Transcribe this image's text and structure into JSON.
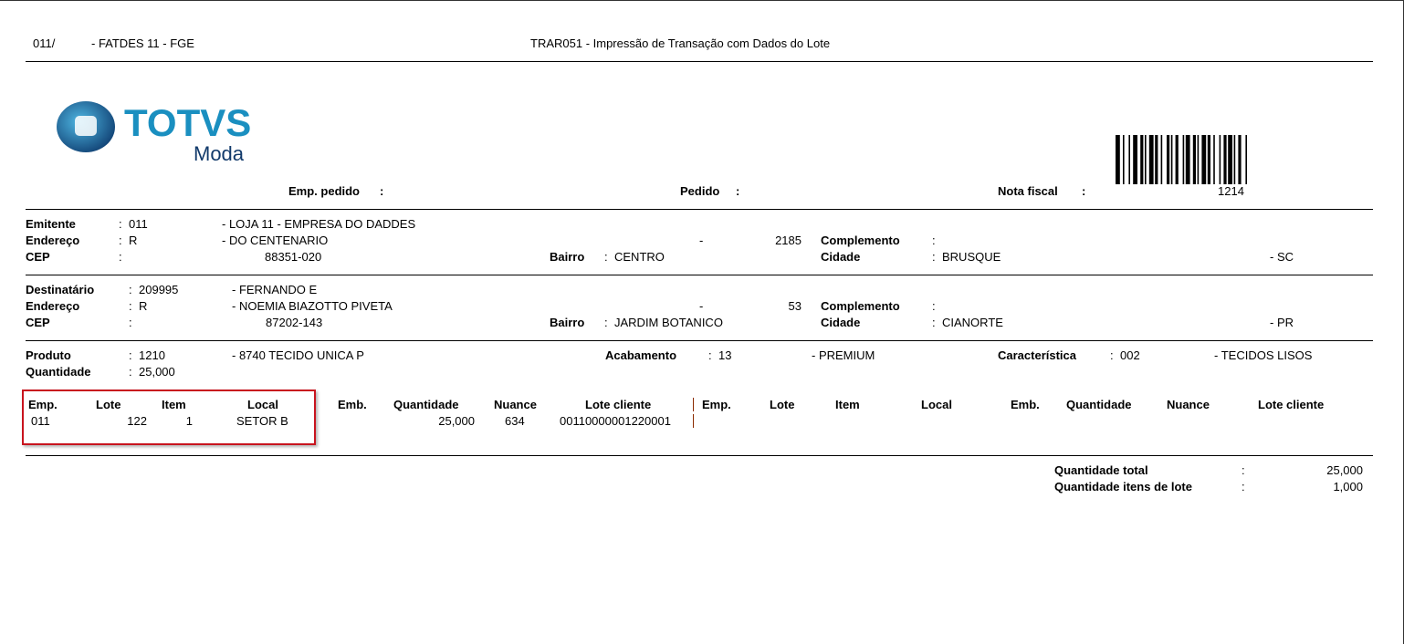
{
  "header": {
    "company_code": "011/",
    "report_unit": "- FATDES 11 - FGE",
    "title": "TRAR051 - Impressão de Transação com Dados do Lote"
  },
  "logo": {
    "brand": "TOTVS",
    "sub": "Moda",
    "color": "#1a8fc0"
  },
  "order": {
    "emp_pedido_label": "Emp. pedido",
    "emp_pedido_value": "",
    "pedido_label": "Pedido",
    "pedido_value": "",
    "nota_fiscal_label": "Nota fiscal",
    "nota_fiscal_value": "1214",
    "colon": ":"
  },
  "emitente": {
    "label": "Emitente",
    "code": "011",
    "name": "- LOJA 11 - EMPRESA DO DADDES",
    "endereco_label": "Endereço",
    "endereco_type": "R",
    "endereco": "- DO CENTENARIO",
    "dash": "-",
    "numero": "2185",
    "complemento_label": "Complemento",
    "cep_label": "CEP",
    "cep": "88351-020",
    "bairro_label": "Bairro",
    "bairro": "CENTRO",
    "cidade_label": "Cidade",
    "cidade": "BRUSQUE",
    "uf": "- SC"
  },
  "destinatario": {
    "label": "Destinatário",
    "code": "209995",
    "name": "- FERNANDO E",
    "endereco_label": "Endereço",
    "endereco_type": "R",
    "endereco": "- NOEMIA BIAZOTTO PIVETA",
    "dash": "-",
    "numero": "53",
    "complemento_label": "Complemento",
    "cep_label": "CEP",
    "cep": "87202-143",
    "bairro_label": "Bairro",
    "bairro": "JARDIM BOTANICO",
    "cidade_label": "Cidade",
    "cidade": "CIANORTE",
    "uf": "- PR"
  },
  "produto": {
    "label": "Produto",
    "code": "1210",
    "name": "- 8740 TECIDO UNICA P",
    "acabamento_label": "Acabamento",
    "acabamento_code": "13",
    "acabamento": "- PREMIUM",
    "caracteristica_label": "Característica",
    "caracteristica_code": "002",
    "caracteristica": "- TECIDOS LISOS",
    "quantidade_label": "Quantidade",
    "quantidade": "25,000"
  },
  "lotes": {
    "columns": [
      "Emp.",
      "Lote",
      "Item",
      "Local",
      "Emb.",
      "Quantidade",
      "Nuance",
      "Lote cliente"
    ],
    "rows": [
      {
        "emp": "011",
        "lote": "122",
        "item": "1",
        "local": "SETOR B",
        "emb": "",
        "quantidade": "25,000",
        "nuance": "634",
        "lote_cliente": "00110000001220001"
      }
    ]
  },
  "totals": {
    "total_label": "Quantidade total",
    "total": "25,000",
    "itens_label": "Quantidade itens de lote",
    "itens": "1,000"
  }
}
